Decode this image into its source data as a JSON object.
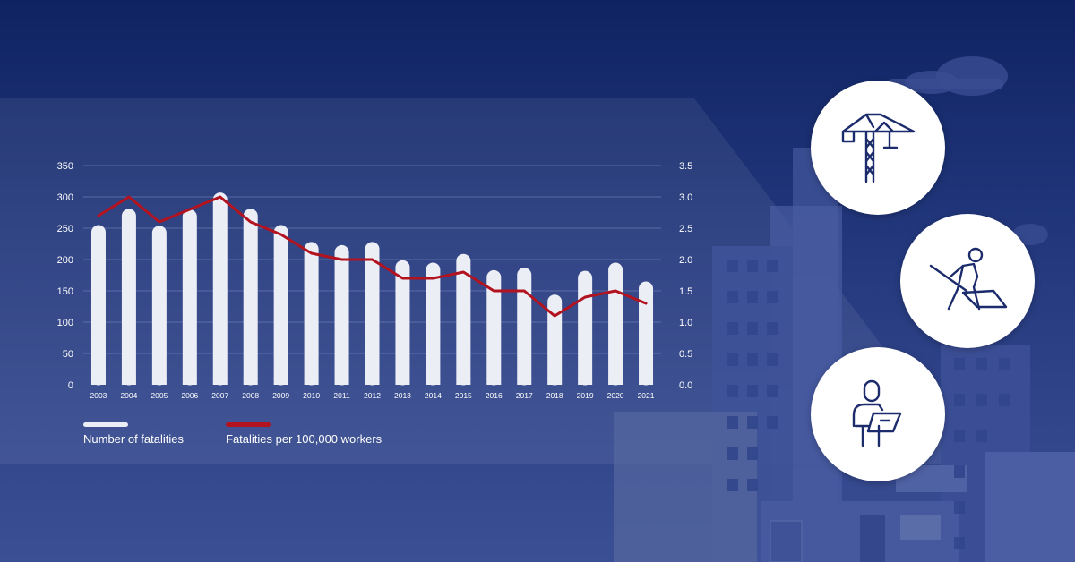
{
  "colors": {
    "bars": "#eceef6",
    "line": "#b3121f",
    "axis_text": "#ffffff",
    "grid": "#7f8fc0",
    "icon_stroke": "#1b2b6b"
  },
  "legend": {
    "fatalities_label": "Number of fatalities",
    "rate_label": "Fatalities per 100,000 workers"
  },
  "icons": [
    "construction-crane-icon",
    "worker-shovel-icon",
    "inspector-clipboard-icon"
  ],
  "chart_data": {
    "type": "bar",
    "categories": [
      "2003",
      "2004",
      "2005",
      "2006",
      "2007",
      "2008",
      "2009",
      "2010",
      "2011",
      "2012",
      "2013",
      "2014",
      "2015",
      "2016",
      "2017",
      "2018",
      "2019",
      "2020",
      "2021"
    ],
    "series": [
      {
        "name": "Number of fatalities",
        "type": "bar",
        "axis": "left",
        "values": [
          255,
          281,
          254,
          280,
          307,
          281,
          255,
          228,
          223,
          228,
          199,
          195,
          209,
          183,
          187,
          144,
          182,
          195,
          165
        ]
      },
      {
        "name": "Fatalities per 100,000 workers",
        "type": "line",
        "axis": "right",
        "values": [
          2.7,
          3.0,
          2.6,
          2.8,
          3.0,
          2.6,
          2.4,
          2.1,
          2.0,
          2.0,
          1.7,
          1.7,
          1.8,
          1.5,
          1.5,
          1.1,
          1.4,
          1.5,
          1.3
        ]
      }
    ],
    "ylim": [
      0,
      350
    ],
    "yticks": [
      "0",
      "50",
      "100",
      "150",
      "200",
      "250",
      "300",
      "350"
    ],
    "y2lim": [
      0,
      3.5
    ],
    "y2ticks": [
      "0.0",
      "0.5",
      "1.0",
      "1.5",
      "2.0",
      "2.5",
      "3.0",
      "3.5"
    ],
    "grid": true,
    "legend_position": "bottom-left"
  }
}
